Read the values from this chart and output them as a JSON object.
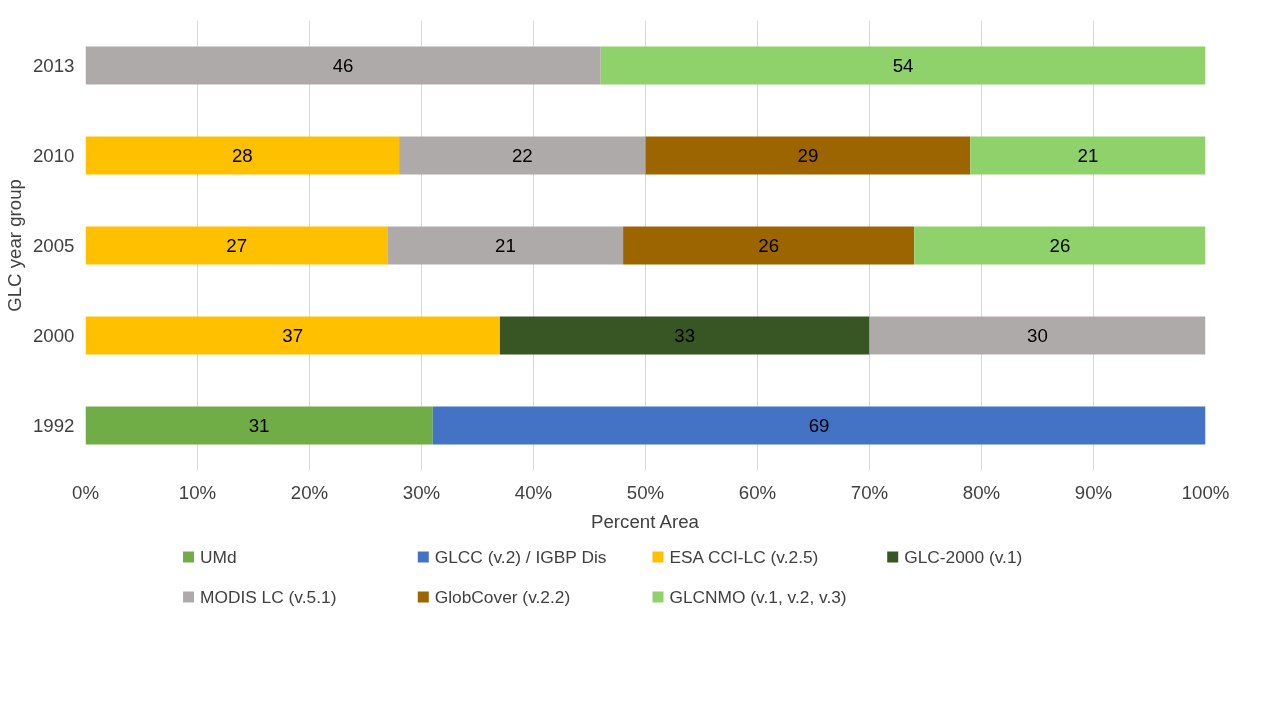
{
  "chart_data": {
    "type": "bar",
    "orientation": "horizontal",
    "stacked": true,
    "xlabel": "Percent Area",
    "ylabel": "GLC year group",
    "categories": [
      "2013",
      "2010",
      "2005",
      "2000",
      "1992"
    ],
    "series": [
      {
        "name": "UMd",
        "color": "#70ad47",
        "values": [
          null,
          null,
          null,
          null,
          31
        ]
      },
      {
        "name": "GLCC (v.2) / IGBP Dis",
        "color": "#4472c4",
        "values": [
          null,
          null,
          null,
          null,
          69
        ]
      },
      {
        "name": "ESA CCI-LC (v.2.5)",
        "color": "#ffc000",
        "values": [
          null,
          28,
          27,
          37,
          null
        ]
      },
      {
        "name": "GLC-2000 (v.1)",
        "color": "#375623",
        "values": [
          null,
          null,
          null,
          33,
          null
        ]
      },
      {
        "name": "MODIS LC (v.5.1)",
        "color": "#aeaaaa",
        "values": [
          46,
          22,
          21,
          30,
          null
        ]
      },
      {
        "name": "GlobCover (v.2.2)",
        "color": "#9c6500",
        "values": [
          null,
          29,
          26,
          null,
          null
        ]
      },
      {
        "name": "GLCNMO (v.1, v.2, v.3)",
        "color": "#8fd16a",
        "values": [
          54,
          21,
          26,
          null,
          null
        ]
      }
    ],
    "xlim": [
      0,
      100
    ],
    "xticks": [
      {
        "value": 0,
        "label": "0%"
      },
      {
        "value": 10,
        "label": "10%"
      },
      {
        "value": 20,
        "label": "20%"
      },
      {
        "value": 30,
        "label": "30%"
      },
      {
        "value": 40,
        "label": "40%"
      },
      {
        "value": 50,
        "label": "50%"
      },
      {
        "value": 60,
        "label": "60%"
      },
      {
        "value": 70,
        "label": "70%"
      },
      {
        "value": 80,
        "label": "80%"
      },
      {
        "value": 90,
        "label": "90%"
      },
      {
        "value": 100,
        "label": "100%"
      }
    ],
    "grid": "x",
    "legend": "bottom",
    "data_labels": true
  }
}
